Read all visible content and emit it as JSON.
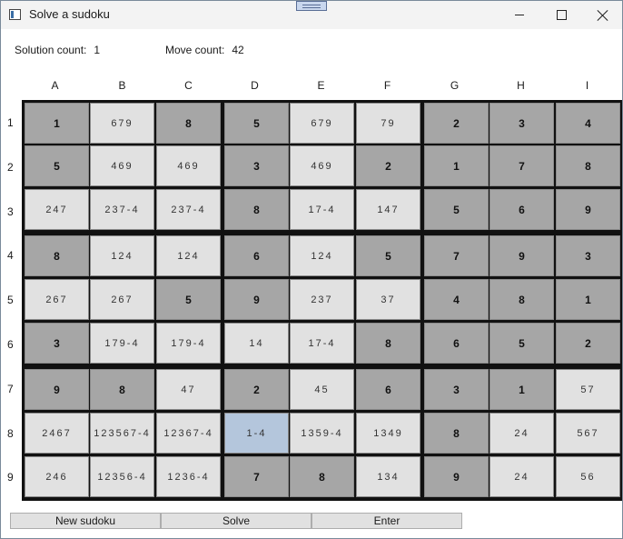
{
  "window": {
    "title": "Solve a sudoku"
  },
  "stats": {
    "solution_label": "Solution count:",
    "solution_value": "1",
    "move_label": "Move count:",
    "move_value": "42"
  },
  "columns": [
    "A",
    "B",
    "C",
    "D",
    "E",
    "F",
    "G",
    "H",
    "I"
  ],
  "rows": [
    "1",
    "2",
    "3",
    "4",
    "5",
    "6",
    "7",
    "8",
    "9"
  ],
  "grid": [
    [
      {
        "t": "1",
        "g": true
      },
      {
        "t": "679"
      },
      {
        "t": "8",
        "g": true
      },
      {
        "t": "5",
        "g": true
      },
      {
        "t": "679"
      },
      {
        "t": "79"
      },
      {
        "t": "2",
        "g": true
      },
      {
        "t": "3",
        "g": true
      },
      {
        "t": "4",
        "g": true
      }
    ],
    [
      {
        "t": "5",
        "g": true
      },
      {
        "t": "469"
      },
      {
        "t": "469"
      },
      {
        "t": "3",
        "g": true
      },
      {
        "t": "469"
      },
      {
        "t": "2",
        "g": true
      },
      {
        "t": "1",
        "g": true
      },
      {
        "t": "7",
        "g": true
      },
      {
        "t": "8",
        "g": true
      }
    ],
    [
      {
        "t": "247"
      },
      {
        "t": "237-4"
      },
      {
        "t": "237-4"
      },
      {
        "t": "8",
        "g": true
      },
      {
        "t": "17-4"
      },
      {
        "t": "147"
      },
      {
        "t": "5",
        "g": true
      },
      {
        "t": "6",
        "g": true
      },
      {
        "t": "9",
        "g": true
      }
    ],
    [
      {
        "t": "8",
        "g": true
      },
      {
        "t": "124"
      },
      {
        "t": "124"
      },
      {
        "t": "6",
        "g": true
      },
      {
        "t": "124"
      },
      {
        "t": "5",
        "g": true
      },
      {
        "t": "7",
        "g": true
      },
      {
        "t": "9",
        "g": true
      },
      {
        "t": "3",
        "g": true
      }
    ],
    [
      {
        "t": "267"
      },
      {
        "t": "267"
      },
      {
        "t": "5",
        "g": true
      },
      {
        "t": "9",
        "g": true
      },
      {
        "t": "237"
      },
      {
        "t": "37"
      },
      {
        "t": "4",
        "g": true
      },
      {
        "t": "8",
        "g": true
      },
      {
        "t": "1",
        "g": true
      }
    ],
    [
      {
        "t": "3",
        "g": true
      },
      {
        "t": "179-4"
      },
      {
        "t": "179-4"
      },
      {
        "t": "14"
      },
      {
        "t": "17-4"
      },
      {
        "t": "8",
        "g": true
      },
      {
        "t": "6",
        "g": true
      },
      {
        "t": "5",
        "g": true
      },
      {
        "t": "2",
        "g": true
      }
    ],
    [
      {
        "t": "9",
        "g": true
      },
      {
        "t": "8",
        "g": true
      },
      {
        "t": "47"
      },
      {
        "t": "2",
        "g": true
      },
      {
        "t": "45"
      },
      {
        "t": "6",
        "g": true
      },
      {
        "t": "3",
        "g": true
      },
      {
        "t": "1",
        "g": true
      },
      {
        "t": "57"
      }
    ],
    [
      {
        "t": "2467"
      },
      {
        "t": "123567-4"
      },
      {
        "t": "12367-4"
      },
      {
        "t": "1-4",
        "s": true
      },
      {
        "t": "1359-4"
      },
      {
        "t": "1349"
      },
      {
        "t": "8",
        "g": true
      },
      {
        "t": "24"
      },
      {
        "t": "567"
      }
    ],
    [
      {
        "t": "246"
      },
      {
        "t": "12356-4"
      },
      {
        "t": "1236-4"
      },
      {
        "t": "7",
        "g": true
      },
      {
        "t": "8",
        "g": true
      },
      {
        "t": "134"
      },
      {
        "t": "9",
        "g": true
      },
      {
        "t": "24"
      },
      {
        "t": "56"
      }
    ]
  ],
  "buttons": {
    "new": "New sudoku",
    "solve": "Solve",
    "enter": "Enter"
  },
  "colors": {
    "given": "#a6a6a6",
    "candidate": "#e1e1e1",
    "selected": "#b4c6dc"
  }
}
